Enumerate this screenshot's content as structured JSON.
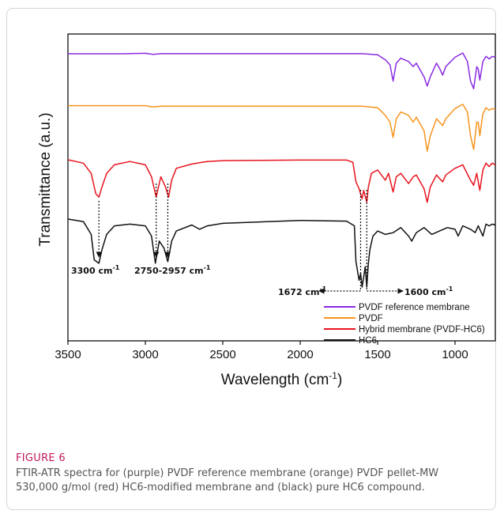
{
  "figure": {
    "label": "FIGURE 6",
    "caption": "FTIR-ATR spectra for (purple) PVDF reference membrane (orange) PVDF pellet-MW 530,000 g/mol (red) HC6-modified membrane and (black) pure HC6 compound."
  },
  "chart_data": {
    "type": "line",
    "title": "",
    "xlabel": "Wavelength (cm",
    "xlabel_sup": "-1",
    "xlabel_close": ")",
    "ylabel": "Transmittance (a.u.)",
    "xlim": [
      3500,
      740
    ],
    "x_reversed": true,
    "xticks": [
      "3500",
      "3000",
      "2500",
      "2000",
      "1500",
      "1000"
    ],
    "grid": false,
    "legend_placement": "bottom-right",
    "series": [
      {
        "name": "PVDF reference membrane",
        "color": "#8a2be2",
        "x": [
          3500,
          3150,
          3000,
          2950,
          2900,
          1600,
          1500,
          1450,
          1420,
          1400,
          1380,
          1350,
          1300,
          1270,
          1250,
          1200,
          1180,
          1160,
          1120,
          1100,
          1080,
          1060,
          1000,
          950,
          920,
          900,
          880,
          860,
          850,
          840,
          820,
          800,
          780,
          760,
          740
        ],
        "y": [
          0.45,
          0.45,
          0.2,
          0.8,
          0.4,
          0.4,
          1.0,
          4.0,
          7.0,
          16.5,
          6.0,
          3.0,
          5.0,
          8.0,
          6.0,
          14.0,
          19.5,
          14.0,
          6.0,
          9.0,
          13.0,
          8.0,
          2.5,
          0.0,
          5.0,
          16.5,
          21.0,
          8.0,
          9.5,
          16.0,
          5.0,
          2.0,
          3.5,
          2.0,
          2.5
        ]
      },
      {
        "name": "PVDF",
        "color": "#f7941d",
        "x": [
          3500,
          3150,
          3000,
          2950,
          2900,
          1600,
          1500,
          1450,
          1420,
          1400,
          1380,
          1350,
          1300,
          1270,
          1250,
          1200,
          1180,
          1160,
          1120,
          1100,
          1080,
          1060,
          1000,
          950,
          920,
          900,
          880,
          860,
          850,
          840,
          820,
          800,
          780,
          760,
          740
        ],
        "y": [
          0.3,
          0.3,
          0.3,
          1.0,
          0.6,
          0.6,
          1.5,
          6.0,
          10.0,
          19.0,
          8.0,
          4.0,
          6.0,
          10.0,
          7.0,
          15.0,
          27.0,
          18.0,
          8.0,
          10.0,
          12.0,
          8.0,
          2.0,
          -0.5,
          4.0,
          18.0,
          26.0,
          10.0,
          10.0,
          18.0,
          5.0,
          1.5,
          3.0,
          2.0,
          2.5
        ]
      },
      {
        "name": "Hybrid membrane (PVDF-HC6)",
        "color": "#e8141e",
        "x": [
          3500,
          3400,
          3350,
          3320,
          3300,
          3280,
          3250,
          3200,
          3100,
          3000,
          2960,
          2930,
          2900,
          2870,
          2850,
          2830,
          2800,
          2700,
          2600,
          2500,
          2000,
          1700,
          1660,
          1640,
          1620,
          1600,
          1590,
          1570,
          1560,
          1540,
          1500,
          1450,
          1430,
          1400,
          1380,
          1350,
          1300,
          1270,
          1250,
          1200,
          1180,
          1160,
          1120,
          1100,
          1080,
          1060,
          1000,
          950,
          900,
          880,
          860,
          840,
          820,
          800,
          780,
          760,
          740
        ],
        "y": [
          0.0,
          2.0,
          8.0,
          20.0,
          22.0,
          16.0,
          8.0,
          3.0,
          1.0,
          3.0,
          10.0,
          22.0,
          10.0,
          16.0,
          22.0,
          12.0,
          5.0,
          2.5,
          1.0,
          0.5,
          0.2,
          0.2,
          1.5,
          13.0,
          17.0,
          23.0,
          18.0,
          25.0,
          16.0,
          8.0,
          6.0,
          12.0,
          8.0,
          19.0,
          10.0,
          8.0,
          14.0,
          10.0,
          9.0,
          17.0,
          25.0,
          16.0,
          9.0,
          11.0,
          13.0,
          9.0,
          5.0,
          3.0,
          12.0,
          15.0,
          8.0,
          18.0,
          6.0,
          2.0,
          4.0,
          2.0,
          3.0
        ]
      },
      {
        "name": "HC6",
        "color": "#111111",
        "x": [
          3500,
          3400,
          3350,
          3330,
          3300,
          3280,
          3250,
          3200,
          3100,
          3000,
          2960,
          2935,
          2910,
          2880,
          2855,
          2830,
          2800,
          2700,
          2650,
          2600,
          2500,
          2000,
          1700,
          1650,
          1640,
          1620,
          1610,
          1600,
          1590,
          1580,
          1570,
          1560,
          1550,
          1530,
          1500,
          1450,
          1400,
          1350,
          1300,
          1280,
          1250,
          1200,
          1150,
          1100,
          1050,
          1000,
          980,
          950,
          900,
          870,
          850,
          820,
          800,
          780,
          760,
          740
        ],
        "y": [
          0.0,
          1.5,
          9.0,
          24.0,
          26.0,
          18.0,
          9.0,
          4.0,
          3.0,
          4.0,
          10.0,
          26.0,
          13.0,
          17.0,
          25.0,
          13.0,
          7.0,
          3.5,
          6.0,
          4.0,
          2.5,
          0.8,
          1.2,
          4.0,
          25.0,
          36.0,
          32.0,
          40.0,
          34.0,
          28.0,
          40.0,
          26.0,
          18.0,
          10.0,
          7.0,
          9.0,
          8.0,
          5.0,
          10.0,
          13.0,
          8.0,
          5.0,
          9.0,
          7.0,
          5.0,
          6.0,
          10.0,
          4.0,
          6.0,
          8.0,
          4.0,
          10.0,
          3.0,
          4.0,
          3.0,
          3.5
        ]
      }
    ],
    "annotations": [
      {
        "text": "3300 cm",
        "sup": "-1",
        "x": 3300
      },
      {
        "text": "2750-2957 cm",
        "sup": "-1",
        "x": [
          2930,
          2855
        ]
      },
      {
        "text": "1672 cm",
        "sup": "-1",
        "x": 1610,
        "direction": "left"
      },
      {
        "text": "1600 cm",
        "sup": "-1",
        "x": 1570,
        "direction": "right"
      }
    ]
  }
}
